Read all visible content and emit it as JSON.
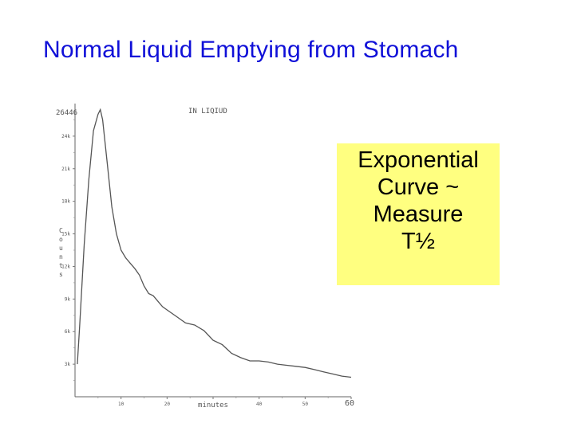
{
  "slide": {
    "title": "Normal Liquid Emptying from Stomach",
    "callout_lines": [
      "Exponential",
      "Curve ~",
      "Measure",
      "T½"
    ],
    "colors": {
      "title": "#1010d8",
      "callout_bg": "#ffff80",
      "curve": "#555555"
    }
  },
  "chart_data": {
    "type": "line",
    "title": "IN LIQIUD",
    "peak_label": "26446",
    "xlabel": "minutes",
    "ylabel": "C o u n t s",
    "xlim": [
      0,
      60
    ],
    "ylim": [
      0,
      27000
    ],
    "x_ticks": [
      10,
      20,
      30,
      40,
      50,
      60
    ],
    "x_tick_labels": [
      "10",
      "20",
      "minutes",
      "40",
      "50",
      "60"
    ],
    "y_ticks": [
      3000,
      6000,
      9000,
      12000,
      15000,
      18000,
      21000,
      24000
    ],
    "y_tick_labels": [
      "3k",
      "6k",
      "9k",
      "12k",
      "15k",
      "18k",
      "21k",
      "24k"
    ],
    "grid": false,
    "series": [
      {
        "x": [
          0.5,
          1,
          2,
          3,
          4,
          5,
          5.5,
          6,
          7,
          8,
          9,
          10,
          11,
          12,
          13,
          14,
          15,
          16,
          17,
          18,
          19,
          20,
          22,
          24,
          26,
          28,
          30,
          32,
          34,
          36,
          38,
          40,
          42,
          44,
          46,
          48,
          50,
          52,
          54,
          56,
          58,
          60
        ],
        "y": [
          3000,
          6500,
          14000,
          20000,
          24500,
          26000,
          26446,
          25500,
          21500,
          17500,
          15000,
          13500,
          12800,
          12300,
          11800,
          11200,
          10200,
          9500,
          9300,
          8800,
          8300,
          8000,
          7400,
          6800,
          6600,
          6100,
          5200,
          4800,
          4000,
          3600,
          3300,
          3300,
          3200,
          3000,
          2900,
          2800,
          2700,
          2500,
          2300,
          2100,
          1900,
          1800
        ]
      }
    ]
  }
}
